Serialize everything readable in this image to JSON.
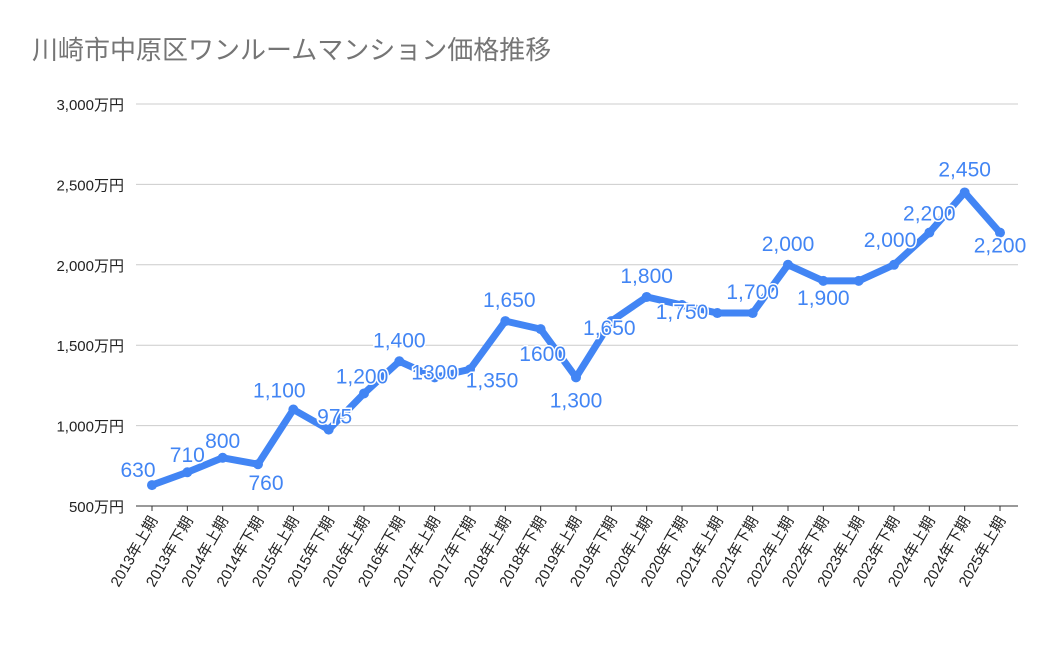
{
  "chart_data": {
    "type": "line",
    "title": "川崎市中原区ワンルームマンション価格推移",
    "xlabel": "",
    "ylabel": "",
    "categories": [
      "2013年上期",
      "2013年下期",
      "2014年上期",
      "2014年下期",
      "2015年上期",
      "2015年下期",
      "2016年上期",
      "2016年下期",
      "2017年上期",
      "2017年下期",
      "2018年上期",
      "2018年下期",
      "2019年上期",
      "2019年下期",
      "2020年上期",
      "2020年下期",
      "2021年上期",
      "2021年下期",
      "2022年上期",
      "2022年下期",
      "2023年上期",
      "2023年下期",
      "2024年上期",
      "2024年下期",
      "2025年上期"
    ],
    "values": [
      630,
      710,
      800,
      760,
      1100,
      975,
      1200,
      1400,
      1300,
      1350,
      1650,
      1600,
      1300,
      1650,
      1800,
      1750,
      1700,
      1700,
      2000,
      1900,
      1900,
      2000,
      2200,
      2450,
      2200
    ],
    "data_labels": [
      "630",
      "710",
      "800",
      "760",
      "1,100",
      "975",
      "1,200",
      "1,400",
      "1300",
      "1,350",
      "1,650",
      "1600",
      "1,300",
      "1,650",
      "1,800",
      "1,750",
      "",
      "1,700",
      "2,000",
      "1,900",
      "",
      "2,000",
      "2,200",
      "2,450",
      "2,200"
    ],
    "ylim": [
      500,
      3000
    ],
    "yticks": [
      500,
      1000,
      1500,
      2000,
      2500,
      3000
    ],
    "ytick_labels": [
      "500万円",
      "1,000万円",
      "1,500万円",
      "2,000万円",
      "2,500万円",
      "3,000万円"
    ],
    "grid": true,
    "legend": "none",
    "colors": {
      "line": "#4285f4",
      "label": "#4285f4",
      "grid": "#cccccc",
      "title": "#757575"
    }
  }
}
